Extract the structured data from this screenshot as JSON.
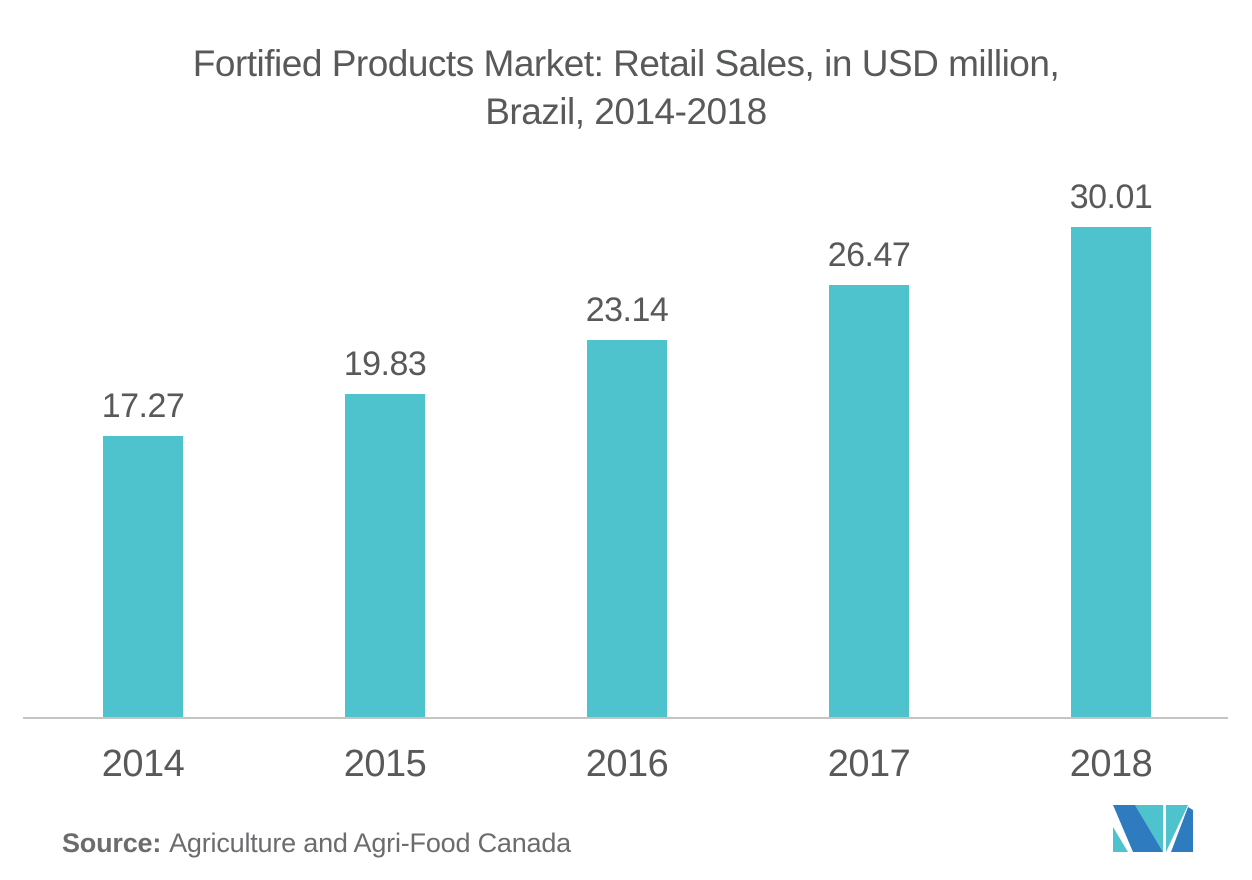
{
  "title": {
    "line1": "Fortified Products Market: Retail Sales, in USD million,",
    "line2": "Brazil, 2014-2018"
  },
  "source": {
    "label": "Source:",
    "text": "Agriculture and Agri-Food Canada"
  },
  "logo": {
    "name": "Mordor Intelligence logo"
  },
  "colors": {
    "bar": "#4FC3CD",
    "text": "#58595B",
    "source_text": "#6B6C6E",
    "axis_line": "#C6C4C2",
    "logo_blue": "#2E7BBF",
    "logo_teal": "#4FC3CD"
  },
  "chart_data": {
    "type": "bar",
    "title": "Fortified Products Market: Retail Sales, in USD million, Brazil, 2014-2018",
    "categories": [
      "2014",
      "2015",
      "2016",
      "2017",
      "2018"
    ],
    "values": [
      17.27,
      19.83,
      23.14,
      26.47,
      30.01
    ],
    "series": [
      {
        "name": "Retail Sales (USD million)",
        "values": [
          17.27,
          19.83,
          23.14,
          26.47,
          30.01
        ]
      }
    ],
    "xlabel": "",
    "ylabel": "",
    "ylim": [
      0,
      32
    ],
    "grid": false,
    "legend": false,
    "value_labels_shown": true,
    "bar_color": "#4FC3CD",
    "orientation": "vertical"
  }
}
